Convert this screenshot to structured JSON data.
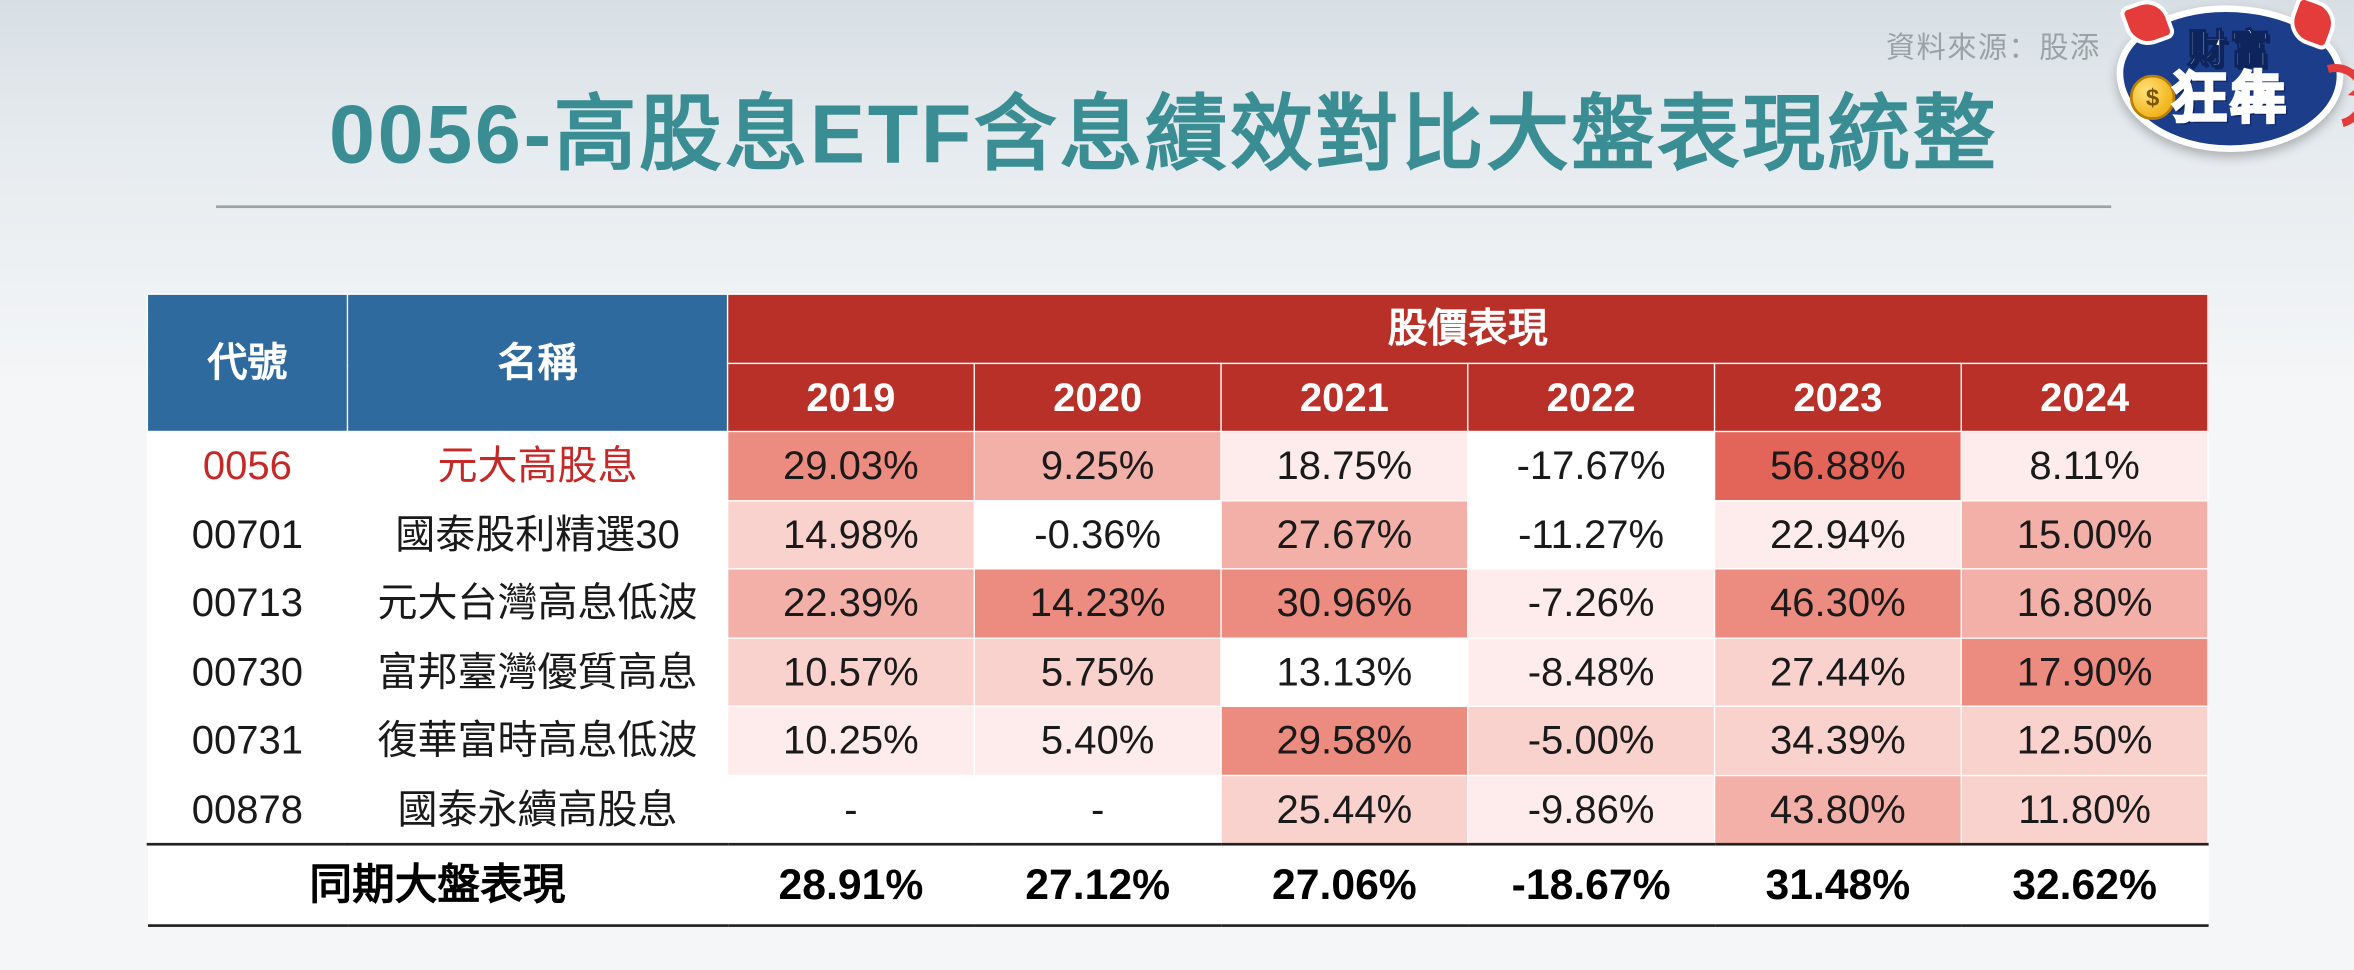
{
  "source_label": "資料來源：股添",
  "title": "0056-高股息ETF含息績效對比大盤表現統整",
  "logo": {
    "line1": "財富",
    "line2": "狂犇",
    "coin": "$"
  },
  "table": {
    "header": {
      "code": "代號",
      "name": "名稱",
      "perf_group": "股價表現",
      "years": [
        "2019",
        "2020",
        "2021",
        "2022",
        "2023",
        "2024"
      ]
    },
    "heat_palette": {
      "0": "#ffffff",
      "1": "#fdeceb",
      "2": "#f9d2cd",
      "3": "#f3b0a8",
      "4": "#ec8b80",
      "5": "#e3655a"
    },
    "rows": [
      {
        "code": "0056",
        "name": "元大高股息",
        "highlight": true,
        "cells": [
          {
            "v": "29.03%",
            "h": 4
          },
          {
            "v": "9.25%",
            "h": 3
          },
          {
            "v": "18.75%",
            "h": 1
          },
          {
            "v": "-17.67%",
            "h": 0
          },
          {
            "v": "56.88%",
            "h": 5
          },
          {
            "v": "8.11%",
            "h": 1
          }
        ]
      },
      {
        "code": "00701",
        "name": "國泰股利精選30",
        "highlight": false,
        "cells": [
          {
            "v": "14.98%",
            "h": 2
          },
          {
            "v": "-0.36%",
            "h": 0
          },
          {
            "v": "27.67%",
            "h": 3
          },
          {
            "v": "-11.27%",
            "h": 0
          },
          {
            "v": "22.94%",
            "h": 1
          },
          {
            "v": "15.00%",
            "h": 3
          }
        ]
      },
      {
        "code": "00713",
        "name": "元大台灣高息低波",
        "highlight": false,
        "cells": [
          {
            "v": "22.39%",
            "h": 3
          },
          {
            "v": "14.23%",
            "h": 4
          },
          {
            "v": "30.96%",
            "h": 4
          },
          {
            "v": "-7.26%",
            "h": 1
          },
          {
            "v": "46.30%",
            "h": 4
          },
          {
            "v": "16.80%",
            "h": 3
          }
        ]
      },
      {
        "code": "00730",
        "name": "富邦臺灣優質高息",
        "highlight": false,
        "cells": [
          {
            "v": "10.57%",
            "h": 2
          },
          {
            "v": "5.75%",
            "h": 2
          },
          {
            "v": "13.13%",
            "h": 0
          },
          {
            "v": "-8.48%",
            "h": 1
          },
          {
            "v": "27.44%",
            "h": 2
          },
          {
            "v": "17.90%",
            "h": 4
          }
        ]
      },
      {
        "code": "00731",
        "name": "復華富時高息低波",
        "highlight": false,
        "cells": [
          {
            "v": "10.25%",
            "h": 1
          },
          {
            "v": "5.40%",
            "h": 1
          },
          {
            "v": "29.58%",
            "h": 4
          },
          {
            "v": "-5.00%",
            "h": 2
          },
          {
            "v": "34.39%",
            "h": 2
          },
          {
            "v": "12.50%",
            "h": 2
          }
        ]
      },
      {
        "code": "00878",
        "name": "國泰永續高股息",
        "highlight": false,
        "cells": [
          {
            "v": "-",
            "h": 0
          },
          {
            "v": "-",
            "h": 0
          },
          {
            "v": "25.44%",
            "h": 2
          },
          {
            "v": "-9.86%",
            "h": 1
          },
          {
            "v": "43.80%",
            "h": 3
          },
          {
            "v": "11.80%",
            "h": 2
          }
        ]
      }
    ],
    "footer": {
      "label": "同期大盤表現",
      "values": [
        "28.91%",
        "27.12%",
        "27.06%",
        "-18.67%",
        "31.48%",
        "32.62%"
      ]
    }
  }
}
